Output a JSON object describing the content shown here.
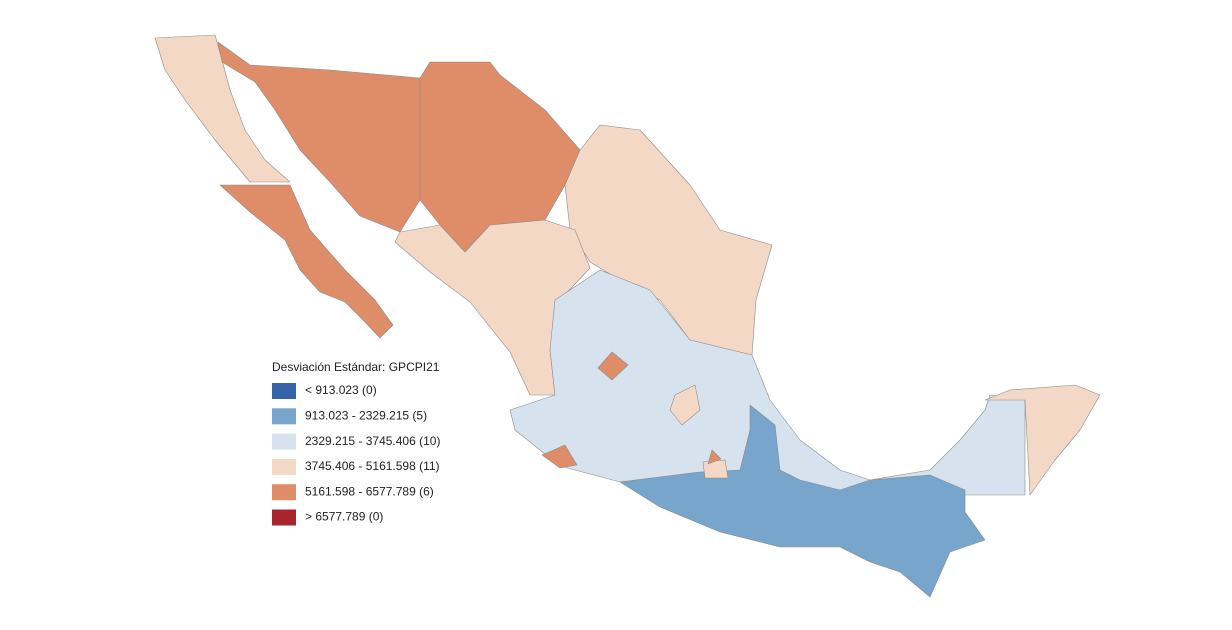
{
  "legend": {
    "title": "Desviación Estándar: GPCPI21",
    "items": [
      {
        "label": "< 913.023 (0)",
        "color": "#3563a9"
      },
      {
        "label": "913.023 - 2329.215 (5)",
        "color": "#77a5cb"
      },
      {
        "label": "2329.215 - 3745.406 (10)",
        "color": "#d6e3ee"
      },
      {
        "label": "3745.406 - 5161.598 (11)",
        "color": "#f4d8c6"
      },
      {
        "label": "5161.598 - 6577.789 (6)",
        "color": "#df8c69"
      },
      {
        "label": "> 6577.789 (0)",
        "color": "#a6252f"
      }
    ]
  }
}
